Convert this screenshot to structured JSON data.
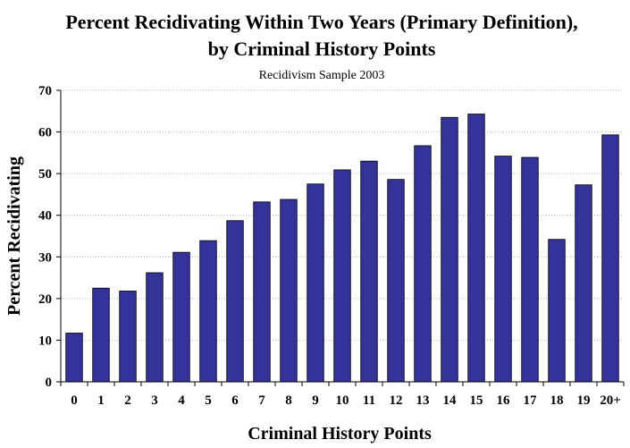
{
  "chart_data": {
    "type": "bar",
    "title_line1": "Percent Recidivating Within Two Years (Primary Definition),",
    "title_line2": "by Criminal History Points",
    "subtitle": "Recidivism Sample 2003",
    "xlabel": "Criminal History Points",
    "ylabel": "Percent Recidivating",
    "categories": [
      "0",
      "1",
      "2",
      "3",
      "4",
      "5",
      "6",
      "7",
      "8",
      "9",
      "10",
      "11",
      "12",
      "13",
      "14",
      "15",
      "16",
      "17",
      "18",
      "19",
      "20+"
    ],
    "values": [
      11.7,
      22.5,
      21.8,
      26.2,
      31.1,
      33.9,
      38.7,
      43.2,
      43.8,
      47.5,
      50.9,
      53.0,
      48.6,
      56.7,
      63.5,
      64.3,
      54.2,
      53.9,
      34.2,
      47.3,
      59.3
    ],
    "ylim": [
      0,
      70
    ],
    "yticks": [
      "0",
      "10",
      "20",
      "30",
      "40",
      "50",
      "60",
      "70"
    ],
    "grid": true,
    "bar_color": "#333399"
  }
}
